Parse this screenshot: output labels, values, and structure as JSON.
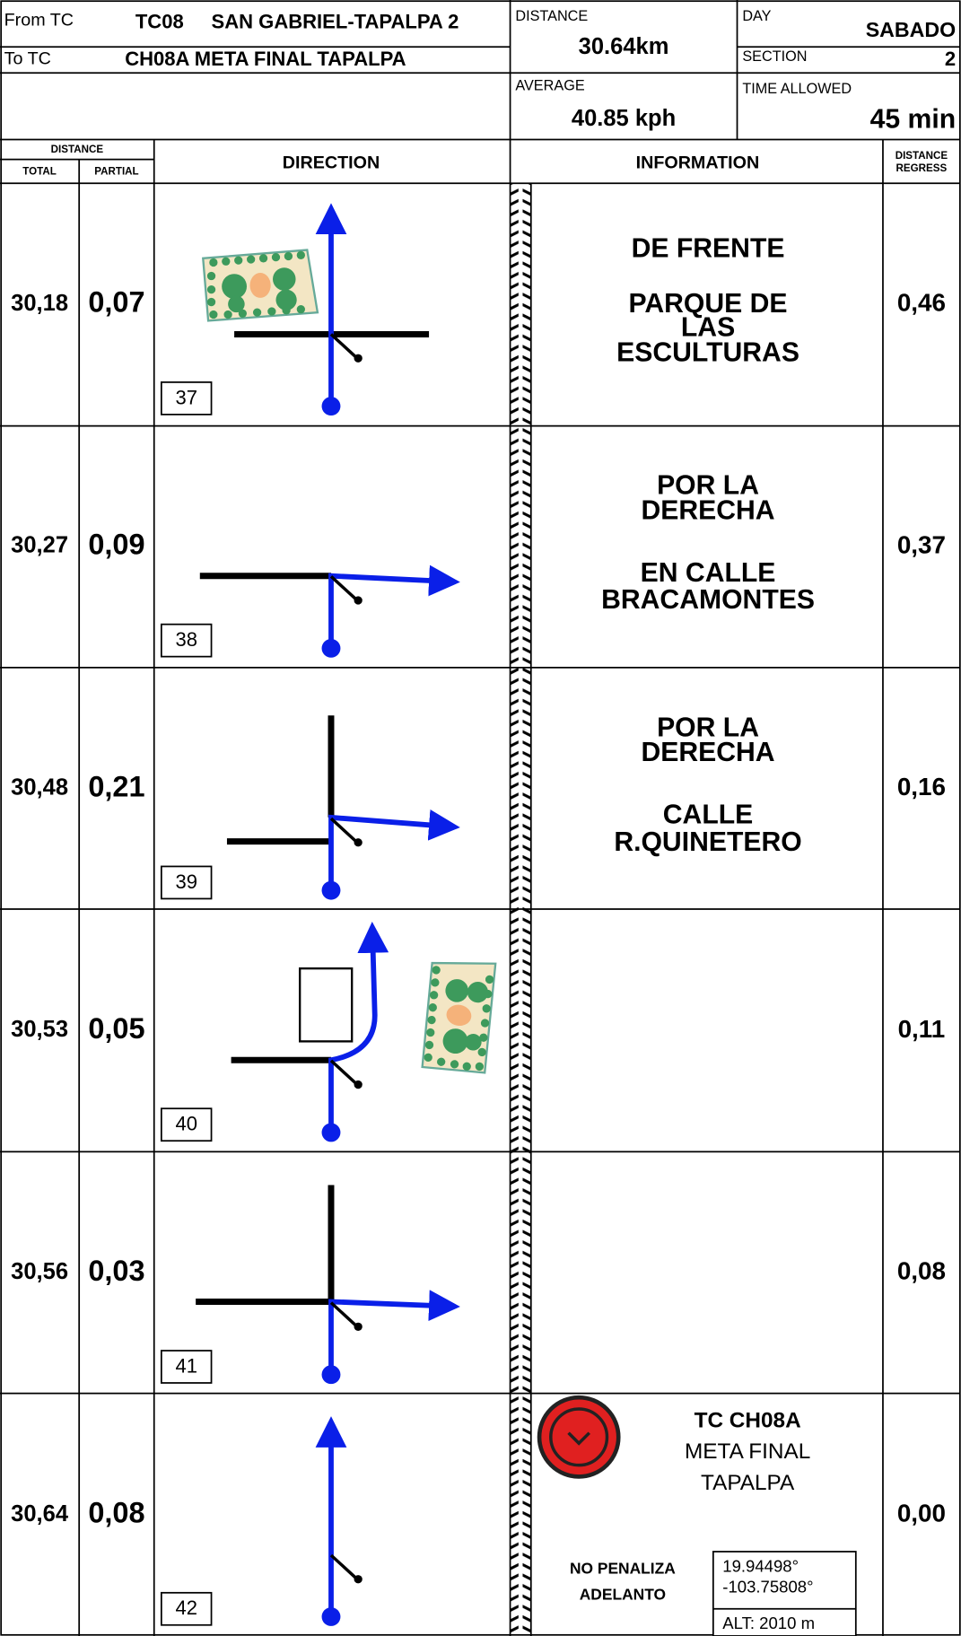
{
  "header": {
    "from_label": "From TC",
    "from_code": "TC08",
    "from_name": "SAN GABRIEL-TAPALPA 2",
    "to_label": "To TC",
    "to_name": "CH08A  META FINAL TAPALPA",
    "distance_label": "DISTANCE",
    "distance": "30.64km",
    "average_label": "AVERAGE",
    "average": "40.85 kph",
    "day_label": "DAY",
    "day": "SABADO",
    "section_label": "SECTION",
    "section": "2",
    "time_label": "TIME ALLOWED",
    "time": "45 min"
  },
  "columns": {
    "distance": "DISTANCE",
    "total": "TOTAL",
    "partial": "PARTIAL",
    "direction": "DIRECTION",
    "information": "INFORMATION",
    "regress_1": "DISTANCE",
    "regress_2": "REGRESS"
  },
  "rows": [
    {
      "total": "30,18",
      "partial": "0,07",
      "number": "37",
      "info": [
        "DE FRENTE",
        "PARQUE DE",
        "LAS",
        "ESCULTURAS"
      ],
      "regress": "0,46"
    },
    {
      "total": "30,27",
      "partial": "0,09",
      "number": "38",
      "info": [
        "POR LA",
        "DERECHA",
        "EN CALLE",
        "BRACAMONTES"
      ],
      "regress": "0,37"
    },
    {
      "total": "30,48",
      "partial": "0,21",
      "number": "39",
      "info": [
        "POR LA",
        "DERECHA",
        "CALLE",
        "R.QUINETERO"
      ],
      "regress": "0,16"
    },
    {
      "total": "30,53",
      "partial": "0,05",
      "number": "40",
      "info": [],
      "regress": "0,11"
    },
    {
      "total": "30,56",
      "partial": "0,03",
      "number": "41",
      "info": [],
      "regress": "0,08"
    },
    {
      "total": "30,64",
      "partial": "0,08",
      "number": "42",
      "info": [],
      "regress": "0,00"
    }
  ],
  "checkpoint": {
    "code": "TC CH08A",
    "line_1": "META FINAL",
    "line_2": "TAPALPA",
    "note_1": "NO PENALIZA",
    "note_2": "ADELANTO",
    "lat": "19.94498°",
    "lon": "-103.75808°",
    "alt": "ALT: 2010 m"
  }
}
